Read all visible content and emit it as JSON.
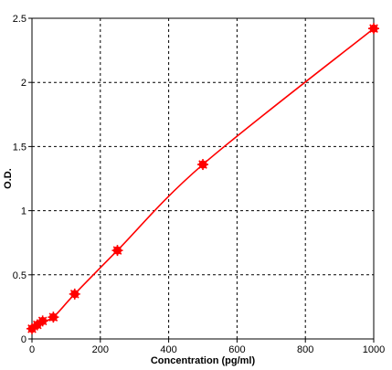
{
  "chart_data": {
    "type": "scatter",
    "title": "",
    "xlabel": "Concentration (pg/ml)",
    "ylabel": "O.D.",
    "xlim": [
      0,
      1000
    ],
    "ylim": [
      0,
      2.5
    ],
    "x_ticks": [
      0,
      200,
      400,
      600,
      800,
      1000
    ],
    "y_ticks": [
      0,
      0.5,
      1,
      1.5,
      2,
      2.5
    ],
    "x_tick_labels": [
      "0",
      "200",
      "400",
      "600",
      "800",
      "1000"
    ],
    "y_tick_labels": [
      "0",
      "0.5",
      "1",
      "1.5",
      "2",
      "2.5"
    ],
    "grid": true,
    "grid_style": "dashed",
    "legend": "none",
    "series": [
      {
        "points": [
          {
            "x": 0,
            "y": 0.08
          },
          {
            "x": 15.6,
            "y": 0.11
          },
          {
            "x": 31.2,
            "y": 0.14
          },
          {
            "x": 62.5,
            "y": 0.17
          },
          {
            "x": 125,
            "y": 0.35
          },
          {
            "x": 250,
            "y": 0.69
          },
          {
            "x": 500,
            "y": 1.36
          },
          {
            "x": 1000,
            "y": 2.42
          }
        ],
        "fit_curve": true,
        "color": "#ff0000"
      }
    ],
    "colors": {
      "series": "#ff0000",
      "grid": "#000000",
      "axis": "#000000"
    }
  }
}
